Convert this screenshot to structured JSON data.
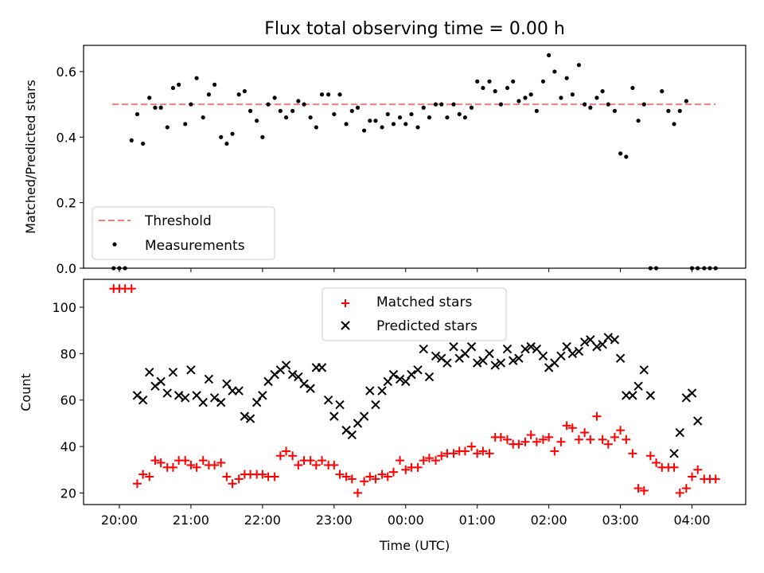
{
  "chart_data": [
    {
      "type": "scatter",
      "title": "Flux total observing time = 0.00 h",
      "xlabel": "",
      "ylabel": "Matched/Predicted stars",
      "ylim": [
        0,
        0.68
      ],
      "yticks": [
        "0.0",
        "0.2",
        "0.4",
        "0.6"
      ],
      "ytick_values": [
        0,
        0.2,
        0.4,
        0.6
      ],
      "legend_position": "lower-left",
      "threshold": {
        "name": "Threshold",
        "value": 0.5,
        "x_range": [
          19.9,
          28.33
        ],
        "color": "#f47c7c"
      },
      "series": [
        {
          "name": "Measurements",
          "color": "#000000",
          "x": [
            19.92,
            20.0,
            20.08,
            20.17,
            20.25,
            20.33,
            20.42,
            20.5,
            20.58,
            20.67,
            20.75,
            20.83,
            20.92,
            21.0,
            21.08,
            21.17,
            21.25,
            21.33,
            21.42,
            21.5,
            21.58,
            21.67,
            21.75,
            21.83,
            21.92,
            22.0,
            22.08,
            22.17,
            22.25,
            22.33,
            22.42,
            22.5,
            22.58,
            22.67,
            22.75,
            22.83,
            22.92,
            23.0,
            23.08,
            23.17,
            23.25,
            23.33,
            23.42,
            23.5,
            23.58,
            23.67,
            23.75,
            23.83,
            23.92,
            24.0,
            24.08,
            24.17,
            24.25,
            24.33,
            24.42,
            24.5,
            24.58,
            24.67,
            24.75,
            24.83,
            24.92,
            25.0,
            25.08,
            25.17,
            25.25,
            25.33,
            25.42,
            25.5,
            25.58,
            25.67,
            25.75,
            25.83,
            25.92,
            26.0,
            26.08,
            26.17,
            26.25,
            26.33,
            26.42,
            26.5,
            26.58,
            26.67,
            26.75,
            26.83,
            26.92,
            27.0,
            27.08,
            27.17,
            27.25,
            27.33,
            27.42,
            27.5,
            27.58,
            27.67,
            27.75,
            27.83,
            27.92,
            28.0,
            28.08,
            28.17,
            28.25,
            28.33
          ],
          "y": [
            0.0,
            0.0,
            0.0,
            0.39,
            0.47,
            0.38,
            0.52,
            0.49,
            0.49,
            0.43,
            0.55,
            0.56,
            0.44,
            0.5,
            0.58,
            0.46,
            0.53,
            0.56,
            0.4,
            0.38,
            0.41,
            0.53,
            0.54,
            0.48,
            0.45,
            0.4,
            0.5,
            0.52,
            0.48,
            0.46,
            0.48,
            0.51,
            0.5,
            0.46,
            0.43,
            0.53,
            0.53,
            0.47,
            0.53,
            0.44,
            0.48,
            0.49,
            0.42,
            0.45,
            0.45,
            0.43,
            0.47,
            0.44,
            0.46,
            0.44,
            0.47,
            0.43,
            0.49,
            0.46,
            0.5,
            0.5,
            0.46,
            0.5,
            0.47,
            0.46,
            0.49,
            0.57,
            0.55,
            0.57,
            0.54,
            0.5,
            0.55,
            0.57,
            0.51,
            0.52,
            0.53,
            0.48,
            0.57,
            0.65,
            0.6,
            0.52,
            0.58,
            0.53,
            0.62,
            0.5,
            0.49,
            0.52,
            0.54,
            0.5,
            0.48,
            0.35,
            0.34,
            0.55,
            0.45,
            0.5,
            0.0,
            0.0,
            0.54,
            0.48,
            0.44,
            0.48,
            0.51,
            0.0,
            0.0,
            0.0,
            0.0,
            0.0
          ]
        }
      ]
    },
    {
      "type": "scatter",
      "title": "",
      "xlabel": "Time (UTC)",
      "ylabel": "Count",
      "ylim": [
        15,
        112
      ],
      "xlim": [
        19.5,
        28.75
      ],
      "yticks": [
        "20",
        "40",
        "60",
        "80",
        "100"
      ],
      "ytick_values": [
        20,
        40,
        60,
        80,
        100
      ],
      "xticks": [
        "20:00",
        "21:00",
        "22:00",
        "23:00",
        "00:00",
        "01:00",
        "02:00",
        "03:00",
        "04:00"
      ],
      "xtick_values": [
        20,
        21,
        22,
        23,
        24,
        25,
        26,
        27,
        28
      ],
      "legend_position": "upper-center",
      "series": [
        {
          "name": "Matched stars",
          "color": "#ff0000",
          "marker": "plus",
          "x": [
            19.92,
            20.0,
            20.08,
            20.17,
            20.25,
            20.33,
            20.42,
            20.5,
            20.58,
            20.67,
            20.75,
            20.83,
            20.92,
            21.0,
            21.08,
            21.17,
            21.25,
            21.33,
            21.42,
            21.5,
            21.58,
            21.67,
            21.75,
            21.83,
            21.92,
            22.0,
            22.08,
            22.17,
            22.25,
            22.33,
            22.42,
            22.5,
            22.58,
            22.67,
            22.75,
            22.83,
            22.92,
            23.0,
            23.08,
            23.17,
            23.25,
            23.33,
            23.42,
            23.5,
            23.58,
            23.67,
            23.75,
            23.83,
            23.92,
            24.0,
            24.08,
            24.17,
            24.25,
            24.33,
            24.42,
            24.5,
            24.58,
            24.67,
            24.75,
            24.83,
            24.92,
            25.0,
            25.08,
            25.17,
            25.25,
            25.33,
            25.42,
            25.5,
            25.58,
            25.67,
            25.75,
            25.83,
            25.92,
            26.0,
            26.08,
            26.17,
            26.25,
            26.33,
            26.42,
            26.5,
            26.58,
            26.67,
            26.75,
            26.83,
            26.92,
            27.0,
            27.08,
            27.17,
            27.25,
            27.33,
            27.42,
            27.5,
            27.58,
            27.67,
            27.75,
            27.83,
            27.92,
            28.0,
            28.08,
            28.17,
            28.25,
            28.33
          ],
          "y": [
            108,
            108,
            108,
            108,
            24,
            28,
            27,
            34,
            33,
            31,
            31,
            34,
            34,
            32,
            31,
            34,
            32,
            32,
            33,
            27,
            24,
            26,
            28,
            28,
            28,
            28,
            27,
            27,
            36,
            38,
            36,
            32,
            34,
            34,
            32,
            34,
            32,
            32,
            28,
            27,
            26,
            20,
            25,
            27,
            26,
            28,
            27,
            29,
            34,
            30,
            31,
            31,
            34,
            35,
            34,
            36,
            37,
            37,
            38,
            38,
            40,
            37,
            38,
            37,
            44,
            44,
            43,
            41,
            41,
            42,
            45,
            42,
            43,
            44,
            38,
            42,
            49,
            48,
            43,
            46,
            43,
            53,
            43,
            41,
            44,
            47,
            43,
            37,
            22,
            21,
            36,
            33,
            31,
            31,
            31,
            20,
            22,
            27,
            30,
            26,
            26,
            26
          ]
        },
        {
          "name": "Predicted stars",
          "color": "#000000",
          "marker": "x",
          "x": [
            20.25,
            20.33,
            20.42,
            20.5,
            20.58,
            20.67,
            20.75,
            20.83,
            20.92,
            21.0,
            21.08,
            21.17,
            21.25,
            21.33,
            21.42,
            21.5,
            21.58,
            21.67,
            21.75,
            21.83,
            21.92,
            22.0,
            22.08,
            22.17,
            22.25,
            22.33,
            22.42,
            22.5,
            22.58,
            22.67,
            22.75,
            22.83,
            22.92,
            23.0,
            23.08,
            23.17,
            23.25,
            23.33,
            23.42,
            23.5,
            23.58,
            23.67,
            23.75,
            23.83,
            23.92,
            24.0,
            24.08,
            24.17,
            24.25,
            24.33,
            24.42,
            24.5,
            24.58,
            24.67,
            24.75,
            24.83,
            24.92,
            25.0,
            25.08,
            25.17,
            25.25,
            25.33,
            25.42,
            25.5,
            25.58,
            25.67,
            25.75,
            25.83,
            25.92,
            26.0,
            26.08,
            26.17,
            26.25,
            26.33,
            26.42,
            26.5,
            26.58,
            26.67,
            26.75,
            26.83,
            26.92,
            27.0,
            27.08,
            27.17,
            27.25,
            27.33,
            27.42,
            27.75,
            27.83,
            27.92,
            28.0,
            28.08
          ],
          "y": [
            62,
            60,
            72,
            66,
            68,
            63,
            72,
            62,
            61,
            73,
            62,
            59,
            69,
            61,
            59,
            67,
            64,
            64,
            53,
            52,
            59,
            62,
            68,
            71,
            73,
            75,
            71,
            70,
            67,
            65,
            74,
            74,
            60,
            53,
            58,
            47,
            45,
            50,
            53,
            64,
            58,
            64,
            68,
            71,
            69,
            68,
            71,
            73,
            82,
            70,
            79,
            78,
            76,
            83,
            78,
            80,
            83,
            76,
            77,
            80,
            75,
            76,
            82,
            77,
            78,
            82,
            83,
            82,
            79,
            74,
            76,
            79,
            83,
            80,
            81,
            85,
            86,
            83,
            84,
            87,
            86,
            78,
            62,
            62,
            66,
            73,
            62,
            37,
            46,
            61,
            63,
            51
          ]
        }
      ]
    }
  ]
}
